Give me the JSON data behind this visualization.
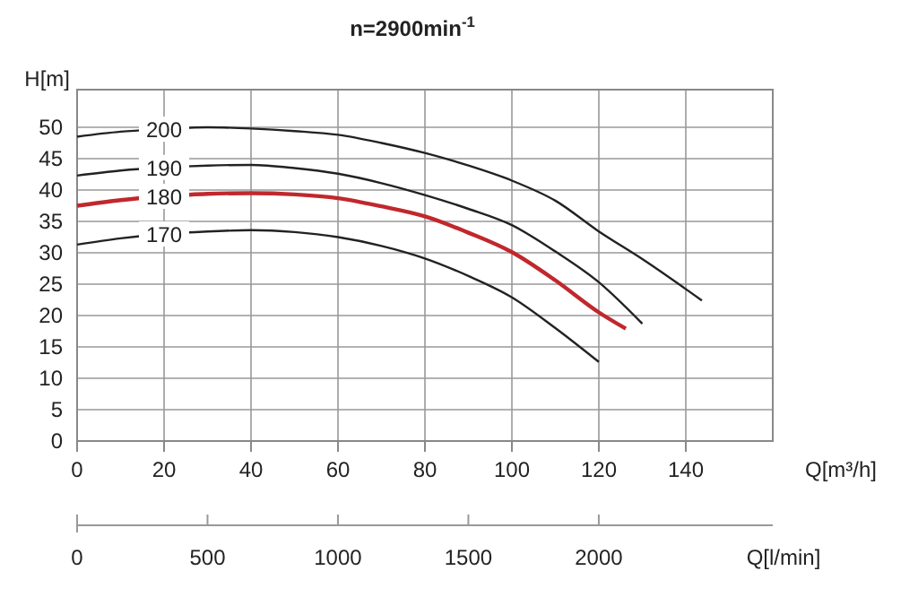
{
  "chart_data": {
    "type": "line",
    "title": "n=2900min$^{-1}$",
    "xlabel": "Q[m³/h]",
    "ylabel": "H[m]",
    "x2label": "Q[l/min]",
    "xlim": [
      0,
      160
    ],
    "xticks": [
      0,
      20,
      40,
      60,
      80,
      100,
      120,
      140
    ],
    "ylim": [
      0,
      56
    ],
    "yticks": [
      0,
      5,
      10,
      15,
      20,
      25,
      30,
      35,
      40,
      45,
      50
    ],
    "x2lim": [
      0,
      2667
    ],
    "x2ticks": [
      0,
      500,
      1000,
      1500,
      2000
    ],
    "grid": true,
    "marker": "none",
    "line_style": "solid",
    "series": [
      {
        "name": "200",
        "color": "#222222",
        "x": [
          0,
          10,
          20,
          30,
          40,
          50,
          60,
          70,
          80,
          90,
          100,
          110,
          120,
          130,
          143.7
        ],
        "values": [
          48.5,
          49.3,
          49.7,
          50,
          49.8,
          49.4,
          48.8,
          47.5,
          45.9,
          43.9,
          41.5,
          38.3,
          33.4,
          29,
          22.4
        ]
      },
      {
        "name": "190",
        "color": "#222222",
        "x": [
          0,
          10,
          20,
          30,
          40,
          50,
          60,
          70,
          80,
          90,
          100,
          110,
          120,
          130
        ],
        "values": [
          42.3,
          43.1,
          43.6,
          43.9,
          44,
          43.5,
          42.6,
          41.1,
          39.2,
          37,
          34.4,
          30.2,
          25.3,
          18.7
        ]
      },
      {
        "name": "180",
        "color": "#c0282d",
        "x": [
          0,
          10,
          20,
          30,
          40,
          50,
          60,
          70,
          80,
          90,
          100,
          110,
          120,
          126.2
        ],
        "values": [
          37.5,
          38.4,
          39,
          39.4,
          39.5,
          39.3,
          38.7,
          37.4,
          35.8,
          33.2,
          30.1,
          25.6,
          20.5,
          17.9
        ]
      },
      {
        "name": "170",
        "color": "#222222",
        "x": [
          0,
          10,
          20,
          30,
          40,
          50,
          60,
          70,
          80,
          90,
          100,
          110,
          120
        ],
        "values": [
          31.3,
          32.3,
          33,
          33.4,
          33.6,
          33.3,
          32.5,
          31.1,
          29.1,
          26.3,
          22.9,
          18,
          12.6
        ]
      }
    ]
  }
}
